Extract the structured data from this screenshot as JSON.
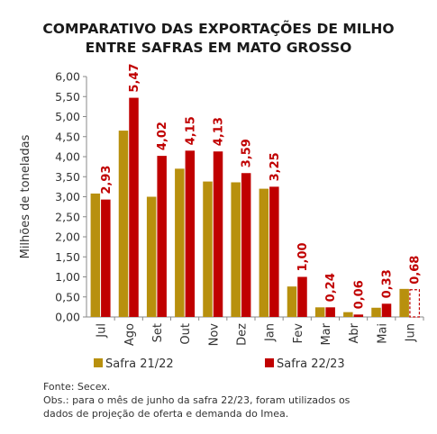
{
  "title_line1": "COMPARATIVO DAS EXPORTAÇÕES DE MILHO",
  "title_line2": "ENTRE SAFRAS EM MATO GROSSO",
  "source": "Fonte: Secex.",
  "note_line1": "Obs.: para o mês de junho da safra 22/23, foram utilizados os",
  "note_line2": "dados de projeção de oferta e demanda do Imea.",
  "colors": {
    "safra_21_22": "#b8900e",
    "safra_22_23": "#c00000",
    "label": "#c00000"
  },
  "chart_data": {
    "type": "bar",
    "title": "COMPARATIVO DAS EXPORTAÇÕES DE MILHO ENTRE SAFRAS EM MATO GROSSO",
    "ylabel": "Milhões de toneladas",
    "xlabel": "",
    "ylim": [
      0,
      6
    ],
    "yticks": [
      "0,00",
      "0,50",
      "1,00",
      "1,50",
      "2,00",
      "2,50",
      "3,00",
      "3,50",
      "4,00",
      "4,50",
      "5,00",
      "5,50",
      "6,00"
    ],
    "categories": [
      "Jul",
      "Ago",
      "Set",
      "Out",
      "Nov",
      "Dez",
      "Jan",
      "Fev",
      "Mar",
      "Abr",
      "Mai",
      "Jun"
    ],
    "legend_position": "bottom-left",
    "series": [
      {
        "name": "Safra 21/22",
        "values": [
          3.08,
          4.65,
          3.0,
          3.7,
          3.38,
          3.36,
          3.2,
          0.76,
          0.24,
          0.12,
          0.23,
          0.7
        ]
      },
      {
        "name": "Safra 22/23",
        "values": [
          2.93,
          5.47,
          4.02,
          4.15,
          4.13,
          3.59,
          3.25,
          1.0,
          0.24,
          0.06,
          0.33,
          0.68
        ],
        "labels": [
          "2,93",
          "5,47",
          "4,02",
          "4,15",
          "4,13",
          "3,59",
          "3,25",
          "1,00",
          "0,24",
          "0,06",
          "0,33",
          "0,68"
        ],
        "projected": [
          false,
          false,
          false,
          false,
          false,
          false,
          false,
          false,
          false,
          false,
          false,
          true
        ]
      }
    ]
  }
}
